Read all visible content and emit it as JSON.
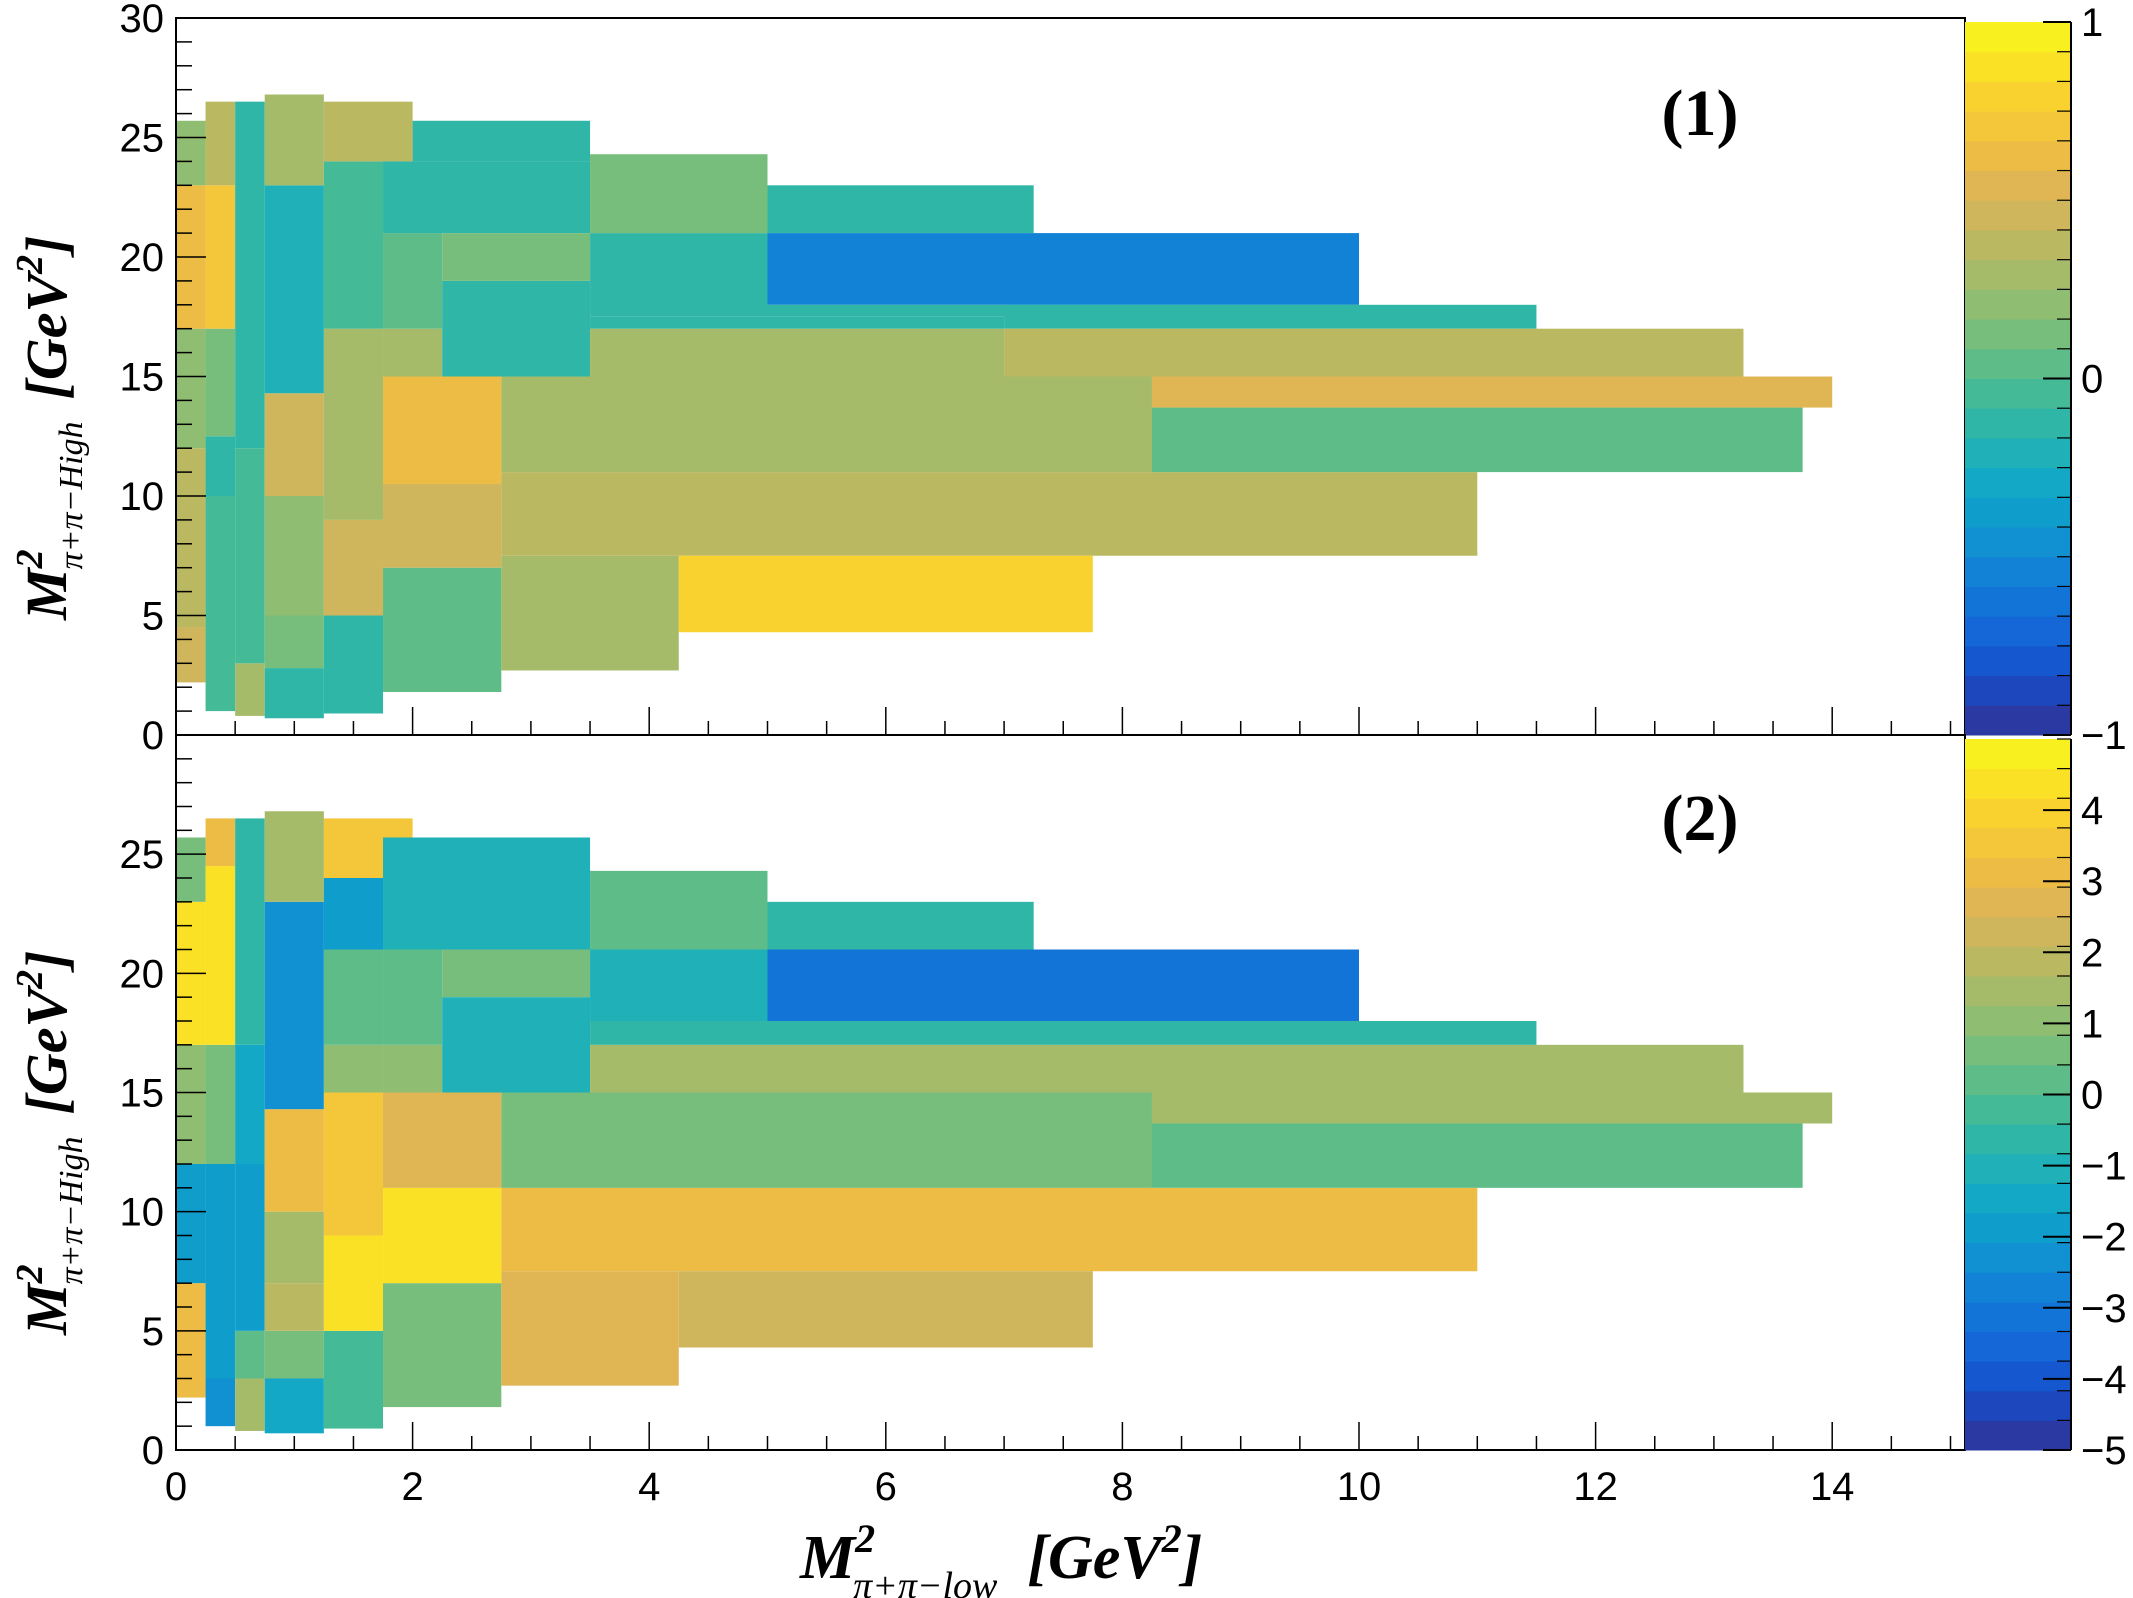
{
  "chart_data": [
    {
      "type": "heatmap",
      "panel_label": "(1)",
      "xlabel": "M²π⁺π⁻ low [GeV²]",
      "ylabel": "M²π⁺π⁻ High [GeV²]",
      "xlim": [
        0,
        15
      ],
      "ylim": [
        0,
        30
      ],
      "x_ticks": [
        0,
        2,
        4,
        6,
        8,
        10,
        12,
        14
      ],
      "y_ticks": [
        0,
        5,
        10,
        15,
        20,
        25,
        30
      ],
      "z_range": [
        -1,
        1
      ],
      "z_ticks": [
        -1,
        0,
        1
      ],
      "cells": [
        {
          "x": [
            0,
            0.25
          ],
          "y": [
            2.2,
            4.5
          ],
          "z": 0.45
        },
        {
          "x": [
            0,
            0.25
          ],
          "y": [
            4.5,
            12
          ],
          "z": 0.4
        },
        {
          "x": [
            0,
            0.25
          ],
          "y": [
            12,
            17
          ],
          "z": 0.2
        },
        {
          "x": [
            0,
            0.25
          ],
          "y": [
            17,
            23
          ],
          "z": 0.65
        },
        {
          "x": [
            0,
            0.25
          ],
          "y": [
            23,
            25.7
          ],
          "z": 0.2
        },
        {
          "x": [
            0.25,
            0.5
          ],
          "y": [
            1,
            10
          ],
          "z": -0.05
        },
        {
          "x": [
            0.25,
            0.5
          ],
          "y": [
            10,
            12.5
          ],
          "z": -0.1
        },
        {
          "x": [
            0.25,
            0.5
          ],
          "y": [
            12.5,
            17
          ],
          "z": 0.15
        },
        {
          "x": [
            0.25,
            0.5
          ],
          "y": [
            17,
            23
          ],
          "z": 0.7
        },
        {
          "x": [
            0.25,
            0.5
          ],
          "y": [
            23,
            26.5
          ],
          "z": 0.35
        },
        {
          "x": [
            0.5,
            0.75
          ],
          "y": [
            0.8,
            3
          ],
          "z": 0.25
        },
        {
          "x": [
            0.5,
            0.75
          ],
          "y": [
            3,
            12
          ],
          "z": -0.05
        },
        {
          "x": [
            0.5,
            0.75
          ],
          "y": [
            12,
            26.5
          ],
          "z": -0.15
        },
        {
          "x": [
            0.75,
            1.25
          ],
          "y": [
            0.7,
            2.8
          ],
          "z": -0.15
        },
        {
          "x": [
            0.75,
            1.25
          ],
          "y": [
            2.8,
            5
          ],
          "z": 0.1
        },
        {
          "x": [
            0.75,
            1.25
          ],
          "y": [
            5,
            10
          ],
          "z": 0.2
        },
        {
          "x": [
            0.75,
            1.25
          ],
          "y": [
            10,
            14.3
          ],
          "z": 0.45
        },
        {
          "x": [
            0.75,
            1.25
          ],
          "y": [
            14.3,
            23
          ],
          "z": -0.25
        },
        {
          "x": [
            0.75,
            1.25
          ],
          "y": [
            23,
            26.8
          ],
          "z": 0.3
        },
        {
          "x": [
            1.25,
            1.75
          ],
          "y": [
            0.9,
            5
          ],
          "z": -0.15
        },
        {
          "x": [
            1.25,
            1.75
          ],
          "y": [
            5,
            9
          ],
          "z": 0.45
        },
        {
          "x": [
            1.25,
            1.75
          ],
          "y": [
            9,
            15
          ],
          "z": 0.3
        },
        {
          "x": [
            1.25,
            1.75
          ],
          "y": [
            15,
            17
          ],
          "z": 0.25
        },
        {
          "x": [
            1.25,
            1.75
          ],
          "y": [
            17,
            24
          ],
          "z": -0.05
        },
        {
          "x": [
            1.25,
            2
          ],
          "y": [
            24,
            26.5
          ],
          "z": 0.35
        },
        {
          "x": [
            1.75,
            2.75
          ],
          "y": [
            1.8,
            7
          ],
          "z": 0.05
        },
        {
          "x": [
            1.75,
            2.75
          ],
          "y": [
            7,
            10.5
          ],
          "z": 0.45
        },
        {
          "x": [
            1.75,
            2.75
          ],
          "y": [
            10.5,
            15
          ],
          "z": 0.65
        },
        {
          "x": [
            1.75,
            2.25
          ],
          "y": [
            15,
            17
          ],
          "z": 0.25
        },
        {
          "x": [
            1.75,
            2.25
          ],
          "y": [
            17,
            21
          ],
          "z": 0
        },
        {
          "x": [
            1.75,
            3.5
          ],
          "y": [
            21,
            24
          ],
          "z": -0.1
        },
        {
          "x": [
            2,
            3.5
          ],
          "y": [
            24,
            25.7
          ],
          "z": -0.15
        },
        {
          "x": [
            2.25,
            3.5
          ],
          "y": [
            15,
            19
          ],
          "z": -0.15
        },
        {
          "x": [
            2.25,
            3.5
          ],
          "y": [
            19,
            21
          ],
          "z": 0.1
        },
        {
          "x": [
            2.75,
            4.25
          ],
          "y": [
            2.7,
            7.5
          ],
          "z": 0.25
        },
        {
          "x": [
            2.75,
            11
          ],
          "y": [
            7.5,
            11
          ],
          "z": 0.35
        },
        {
          "x": [
            2.75,
            8.25
          ],
          "y": [
            11,
            15
          ],
          "z": 0.25
        },
        {
          "x": [
            3.5,
            7
          ],
          "y": [
            15,
            17
          ],
          "z": 0.25
        },
        {
          "x": [
            3.5,
            7
          ],
          "y": [
            17,
            17.5
          ],
          "z": -0.1
        },
        {
          "x": [
            3.5,
            5
          ],
          "y": [
            17.5,
            21
          ],
          "z": -0.15
        },
        {
          "x": [
            3.5,
            5
          ],
          "y": [
            21,
            24.3
          ],
          "z": 0.1
        },
        {
          "x": [
            4.25,
            7.75
          ],
          "y": [
            4.3,
            7.5
          ],
          "z": 0.75
        },
        {
          "x": [
            5,
            10
          ],
          "y": [
            18,
            21
          ],
          "z": -0.55
        },
        {
          "x": [
            5,
            7.25
          ],
          "y": [
            21,
            23
          ],
          "z": -0.15
        },
        {
          "x": [
            5,
            10
          ],
          "y": [
            17.5,
            18
          ],
          "z": -0.15
        },
        {
          "x": [
            7,
            11.5
          ],
          "y": [
            17,
            18
          ],
          "z": -0.1
        },
        {
          "x": [
            7,
            13.25
          ],
          "y": [
            15,
            17
          ],
          "z": 0.35
        },
        {
          "x": [
            8.25,
            13.75
          ],
          "y": [
            11,
            13.7
          ],
          "z": 0.05
        },
        {
          "x": [
            8.25,
            14
          ],
          "y": [
            13.7,
            15
          ],
          "z": 0.5
        }
      ]
    },
    {
      "type": "heatmap",
      "panel_label": "(2)",
      "xlabel": "M²π⁺π⁻ low [GeV²]",
      "ylabel": "M²π⁺π⁻ High [GeV²]",
      "xlim": [
        0,
        15
      ],
      "ylim": [
        0,
        30
      ],
      "x_ticks": [
        0,
        2,
        4,
        6,
        8,
        10,
        12,
        14
      ],
      "y_ticks": [
        0,
        5,
        10,
        15,
        20,
        25
      ],
      "z_range": [
        -5,
        5
      ],
      "z_ticks": [
        -5,
        -4,
        -3,
        -2,
        -1,
        0,
        1,
        2,
        3,
        4
      ],
      "cells": [
        {
          "x": [
            0,
            0.25
          ],
          "y": [
            2.2,
            7
          ],
          "z": 3.2
        },
        {
          "x": [
            0,
            0.25
          ],
          "y": [
            7,
            12
          ],
          "z": -2
        },
        {
          "x": [
            0,
            0.25
          ],
          "y": [
            12,
            17
          ],
          "z": 1
        },
        {
          "x": [
            0,
            0.25
          ],
          "y": [
            17,
            23
          ],
          "z": 4.2
        },
        {
          "x": [
            0,
            0.25
          ],
          "y": [
            23,
            25.7
          ],
          "z": 0.5
        },
        {
          "x": [
            0.25,
            0.5
          ],
          "y": [
            1,
            3
          ],
          "z": -2.5
        },
        {
          "x": [
            0.25,
            0.5
          ],
          "y": [
            3,
            12
          ],
          "z": -2
        },
        {
          "x": [
            0.25,
            0.5
          ],
          "y": [
            12,
            17
          ],
          "z": 0.8
        },
        {
          "x": [
            0.25,
            0.5
          ],
          "y": [
            17,
            24.5
          ],
          "z": 4.5
        },
        {
          "x": [
            0.25,
            0.5
          ],
          "y": [
            24.5,
            26.5
          ],
          "z": 3.2
        },
        {
          "x": [
            0.5,
            0.75
          ],
          "y": [
            0.8,
            3
          ],
          "z": 1.5
        },
        {
          "x": [
            0.5,
            0.75
          ],
          "y": [
            3,
            5
          ],
          "z": 0.2
        },
        {
          "x": [
            0.5,
            0.75
          ],
          "y": [
            5,
            12
          ],
          "z": -2
        },
        {
          "x": [
            0.5,
            0.75
          ],
          "y": [
            12,
            17
          ],
          "z": -1.5
        },
        {
          "x": [
            0.5,
            0.75
          ],
          "y": [
            17,
            26.5
          ],
          "z": -0.5
        },
        {
          "x": [
            0.75,
            1.25
          ],
          "y": [
            0.7,
            3
          ],
          "z": -1.5
        },
        {
          "x": [
            0.75,
            1.25
          ],
          "y": [
            3,
            5
          ],
          "z": 0.8
        },
        {
          "x": [
            0.75,
            1.25
          ],
          "y": [
            5,
            7
          ],
          "z": 1.8
        },
        {
          "x": [
            0.75,
            1.25
          ],
          "y": [
            7,
            10
          ],
          "z": 1.5
        },
        {
          "x": [
            0.75,
            1.25
          ],
          "y": [
            10,
            14.3
          ],
          "z": 3
        },
        {
          "x": [
            0.75,
            1.25
          ],
          "y": [
            14.3,
            23
          ],
          "z": -2.3
        },
        {
          "x": [
            0.75,
            1.25
          ],
          "y": [
            23,
            26.8
          ],
          "z": 1.5
        },
        {
          "x": [
            1.25,
            1.75
          ],
          "y": [
            0.9,
            5
          ],
          "z": -0.3
        },
        {
          "x": [
            1.25,
            1.75
          ],
          "y": [
            5,
            9
          ],
          "z": 4.2
        },
        {
          "x": [
            1.25,
            1.75
          ],
          "y": [
            9,
            15
          ],
          "z": 3.5
        },
        {
          "x": [
            1.25,
            1.75
          ],
          "y": [
            15,
            17
          ],
          "z": 1.2
        },
        {
          "x": [
            1.25,
            1.75
          ],
          "y": [
            17,
            21
          ],
          "z": 0
        },
        {
          "x": [
            1.25,
            1.75
          ],
          "y": [
            21,
            24
          ],
          "z": -2
        },
        {
          "x": [
            1.25,
            2
          ],
          "y": [
            24,
            26.5
          ],
          "z": 3.5
        },
        {
          "x": [
            1.75,
            2.75
          ],
          "y": [
            1.8,
            7
          ],
          "z": 0.8
        },
        {
          "x": [
            1.75,
            2.75
          ],
          "y": [
            7,
            11
          ],
          "z": 4.5
        },
        {
          "x": [
            1.75,
            2.75
          ],
          "y": [
            11,
            15
          ],
          "z": 2.8
        },
        {
          "x": [
            1.75,
            2.25
          ],
          "y": [
            15,
            17
          ],
          "z": 1.2
        },
        {
          "x": [
            1.75,
            2.25
          ],
          "y": [
            17,
            21
          ],
          "z": 0
        },
        {
          "x": [
            1.75,
            3.5
          ],
          "y": [
            21,
            25.7
          ],
          "z": -1.2
        },
        {
          "x": [
            2.25,
            3.5
          ],
          "y": [
            15,
            19
          ],
          "z": -1.2
        },
        {
          "x": [
            2.25,
            3.5
          ],
          "y": [
            19,
            21
          ],
          "z": 0.8
        },
        {
          "x": [
            2.75,
            4.25
          ],
          "y": [
            2.7,
            7.5
          ],
          "z": 2.5
        },
        {
          "x": [
            2.75,
            11
          ],
          "y": [
            7.5,
            11
          ],
          "z": 3
        },
        {
          "x": [
            2.75,
            8.25
          ],
          "y": [
            11,
            15
          ],
          "z": 0.8
        },
        {
          "x": [
            3.5,
            13.25
          ],
          "y": [
            15,
            17
          ],
          "z": 1.5
        },
        {
          "x": [
            3.5,
            11.5
          ],
          "y": [
            17,
            18
          ],
          "z": -0.5
        },
        {
          "x": [
            3.5,
            5
          ],
          "y": [
            18,
            21
          ],
          "z": -1.2
        },
        {
          "x": [
            3.5,
            5
          ],
          "y": [
            21,
            24.3
          ],
          "z": 0.3
        },
        {
          "x": [
            4.25,
            7.75
          ],
          "y": [
            4.3,
            7.5
          ],
          "z": 2.3
        },
        {
          "x": [
            5,
            10
          ],
          "y": [
            18,
            21
          ],
          "z": -3
        },
        {
          "x": [
            5,
            7.25
          ],
          "y": [
            21,
            23
          ],
          "z": -0.5
        },
        {
          "x": [
            8.25,
            13.75
          ],
          "y": [
            11,
            13.7
          ],
          "z": 0.2
        },
        {
          "x": [
            8.25,
            14
          ],
          "y": [
            13.7,
            15
          ],
          "z": 1.5
        }
      ]
    }
  ],
  "axes": {
    "x_title": {
      "main": "M",
      "sup": "2",
      "sub": "π+π−low",
      "unit": "[GeV",
      "unit_sup": "2",
      "unit_close": "]"
    },
    "y_title": {
      "main": "M",
      "sup": "2",
      "sub": "π+π−High",
      "unit": "[GeV",
      "unit_sup": "2",
      "unit_close": "]"
    }
  },
  "palette": [
    "#2b3aa3",
    "#1d48bd",
    "#1457cf",
    "#1566d6",
    "#1374d8",
    "#1282d6",
    "#1190d2",
    "#0f9dcc",
    "#12a8c6",
    "#1fb0b8",
    "#30b6a7",
    "#45ba97",
    "#5dbc88",
    "#77bd7c",
    "#8fbd72",
    "#a5bb69",
    "#bbb862",
    "#cfb55c",
    "#dfb653",
    "#ecbc45",
    "#f4c63a",
    "#f9d22f",
    "#fbe126",
    "#f9f11f"
  ],
  "colors": {
    "frame": "#000000",
    "background": "#ffffff"
  }
}
